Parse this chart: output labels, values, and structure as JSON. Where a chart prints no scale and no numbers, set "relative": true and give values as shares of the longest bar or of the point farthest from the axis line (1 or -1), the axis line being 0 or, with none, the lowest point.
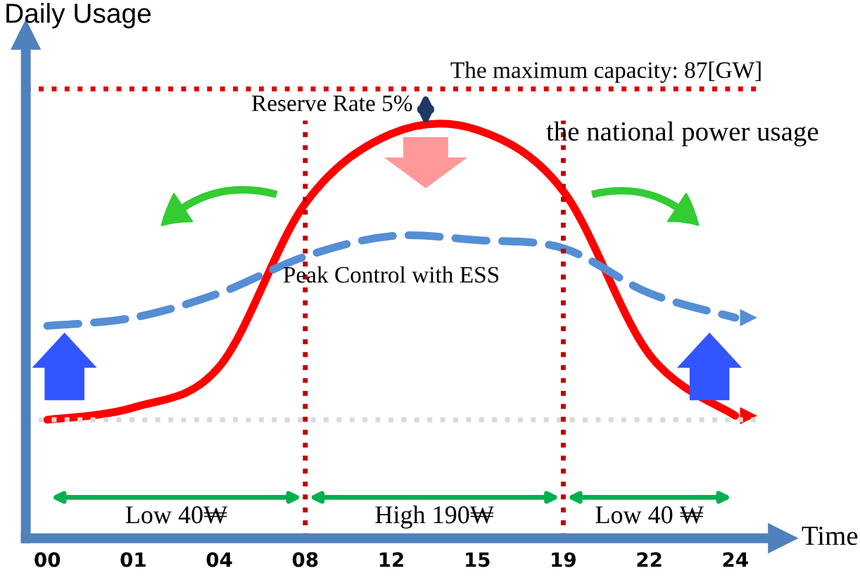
{
  "chart_data": {
    "type": "line",
    "relative": true,
    "ylabel": "Daily Usage",
    "xlabel": "Time",
    "categories": [
      "00",
      "01",
      "04",
      "08",
      "12",
      "15",
      "19",
      "22",
      "24"
    ],
    "series": [
      {
        "name": "the national power usage",
        "color": "#ff0000",
        "line_style": "solid",
        "values": [
          0.29,
          0.32,
          0.42,
          0.82,
          0.99,
          1.0,
          0.85,
          0.45,
          0.3
        ]
      },
      {
        "name": "Peak Control with ESS",
        "color": "#558ed5",
        "line_style": "dashed",
        "values": [
          0.52,
          0.54,
          0.6,
          0.69,
          0.74,
          0.73,
          0.71,
          0.6,
          0.54
        ]
      }
    ],
    "ref_lines": [
      {
        "axis": "y",
        "value": 1.1,
        "color": "#e00000",
        "line_style": "dotted"
      },
      {
        "axis": "y",
        "value": 0.29,
        "color": "#d9d9d9",
        "line_style": "dotted"
      },
      {
        "axis": "x",
        "value": "08",
        "color": "#c00000",
        "line_style": "dotted"
      },
      {
        "axis": "x",
        "value": "19",
        "color": "#c00000",
        "line_style": "dotted"
      }
    ],
    "annotations": [
      "The maximum capacity: 87[GW]",
      "Reserve Rate 5%",
      "Low 40₩",
      "High 190₩",
      "Low 40 ₩"
    ],
    "grid": false,
    "legend": false,
    "marker": "none"
  }
}
